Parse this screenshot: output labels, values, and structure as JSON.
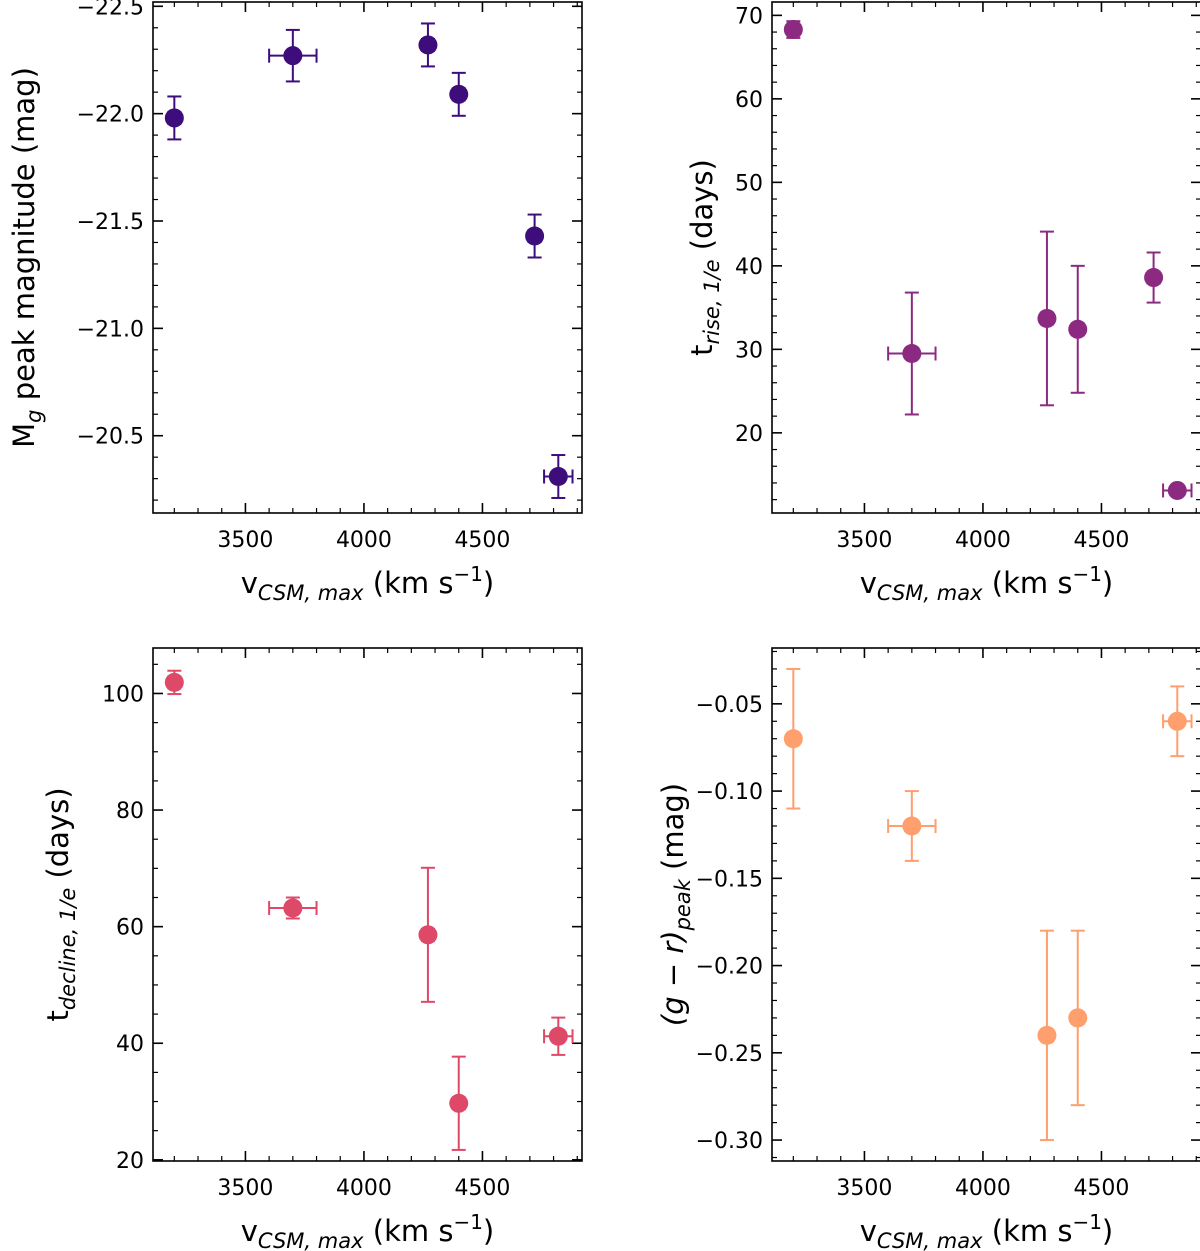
{
  "chart_data": [
    {
      "type": "scatter",
      "id": "mg",
      "color": "#3d0d7c",
      "title": "",
      "xlabel": {
        "main": "v",
        "sub": "CSM, max",
        "unit": " (km s",
        "sup": "−1",
        "close": ")"
      },
      "ylabel": {
        "main": "M",
        "sub": "g",
        "rest": " peak magnitude (mag)"
      },
      "xlim": [
        3110,
        4920
      ],
      "ylim": [
        -22.52,
        -20.14
      ],
      "y_inverted": true,
      "xticks": [
        3500,
        4000,
        4500
      ],
      "xtick_labels": [
        "3500",
        "4000",
        "4500"
      ],
      "yticks": [
        -20.5,
        -21.0,
        -21.5,
        -22.0,
        -22.5
      ],
      "ytick_labels": [
        "−20.5",
        "−21.0",
        "−21.5",
        "−22.0",
        "−22.5"
      ],
      "x_minor_step": 100,
      "y_minor_step": 0.1,
      "points": [
        {
          "x": 3200,
          "y": -21.98,
          "xerr": 25,
          "yerr": 0.1
        },
        {
          "x": 3700,
          "y": -22.27,
          "xerr": 100,
          "yerr": 0.12
        },
        {
          "x": 4270,
          "y": -22.32,
          "xerr": 25,
          "yerr": 0.1
        },
        {
          "x": 4400,
          "y": -22.09,
          "xerr": 25,
          "yerr": 0.1
        },
        {
          "x": 4720,
          "y": -21.43,
          "xerr": 25,
          "yerr": 0.1
        },
        {
          "x": 4820,
          "y": -20.31,
          "xerr": 60,
          "yerr": 0.1
        }
      ]
    },
    {
      "type": "scatter",
      "id": "trise",
      "color": "#8c2981",
      "title": "",
      "xlabel": {
        "main": "v",
        "sub": "CSM, max",
        "unit": " (km s",
        "sup": "−1",
        "close": ")"
      },
      "ylabel": {
        "main": "t",
        "sub": "rise, 1/e",
        "rest": " (days)"
      },
      "xlim": [
        3110,
        4920
      ],
      "ylim": [
        10.4,
        71.6
      ],
      "y_inverted": false,
      "xticks": [
        3500,
        4000,
        4500
      ],
      "xtick_labels": [
        "3500",
        "4000",
        "4500"
      ],
      "yticks": [
        20,
        30,
        40,
        50,
        60,
        70
      ],
      "ytick_labels": [
        "20",
        "30",
        "40",
        "50",
        "60",
        "70"
      ],
      "x_minor_step": 100,
      "y_minor_step": 2,
      "points": [
        {
          "x": 3200,
          "y": 68.3,
          "xerr": 25,
          "yerr": 1
        },
        {
          "x": 3700,
          "y": 29.5,
          "xerr": 100,
          "yerr": 7.3
        },
        {
          "x": 4270,
          "y": 33.7,
          "xerr": 25,
          "yerr": 10.4
        },
        {
          "x": 4400,
          "y": 32.4,
          "xerr": 25,
          "yerr": 7.6
        },
        {
          "x": 4720,
          "y": 38.6,
          "xerr": 25,
          "yerr": 3
        },
        {
          "x": 4820,
          "y": 13.1,
          "xerr": 60,
          "yerr": 0.6
        }
      ]
    },
    {
      "type": "scatter",
      "id": "tdecline",
      "color": "#de4968",
      "title": "",
      "xlabel": {
        "main": "v",
        "sub": "CSM, max",
        "unit": " (km s",
        "sup": "−1",
        "close": ")"
      },
      "ylabel": {
        "main": "t",
        "sub": "decline, 1/e",
        "rest": " (days)"
      },
      "xlim": [
        3110,
        4920
      ],
      "ylim": [
        19.8,
        107.8
      ],
      "y_inverted": false,
      "xticks": [
        3500,
        4000,
        4500
      ],
      "xtick_labels": [
        "3500",
        "4000",
        "4500"
      ],
      "yticks": [
        20,
        40,
        60,
        80,
        100
      ],
      "ytick_labels": [
        "20",
        "40",
        "60",
        "80",
        "100"
      ],
      "x_minor_step": 100,
      "y_minor_step": 5,
      "points": [
        {
          "x": 3200,
          "y": 101.9,
          "xerr": 25,
          "yerr": 2
        },
        {
          "x": 3700,
          "y": 63.2,
          "xerr": 100,
          "yerr": 1.8
        },
        {
          "x": 4270,
          "y": 58.6,
          "xerr": 25,
          "yerr": 11.5
        },
        {
          "x": 4400,
          "y": 29.7,
          "xerr": 25,
          "yerr": 8
        },
        {
          "x": 4820,
          "y": 41.2,
          "xerr": 60,
          "yerr": 3.2
        }
      ]
    },
    {
      "type": "scatter",
      "id": "gr",
      "color": "#fe9f6d",
      "title": "",
      "xlabel": {
        "main": "v",
        "sub": "CSM, max",
        "unit": " (km s",
        "sup": "−1",
        "close": ")"
      },
      "ylabel": {
        "main": "(g − r)",
        "sub": "peak",
        "rest": " (mag)"
      },
      "xlim": [
        3110,
        4920
      ],
      "ylim": [
        -0.312,
        -0.018
      ],
      "y_inverted": false,
      "xticks": [
        3500,
        4000,
        4500
      ],
      "xtick_labels": [
        "3500",
        "4000",
        "4500"
      ],
      "yticks": [
        -0.05,
        -0.1,
        -0.15,
        -0.2,
        -0.25,
        -0.3
      ],
      "ytick_labels": [
        "−0.05",
        "−0.10",
        "−0.15",
        "−0.20",
        "−0.25",
        "−0.30"
      ],
      "x_minor_step": 100,
      "y_minor_step": 0.01,
      "points": [
        {
          "x": 3200,
          "y": -0.07,
          "xerr": 25,
          "yerr": 0.04
        },
        {
          "x": 3700,
          "y": -0.12,
          "xerr": 100,
          "yerr": 0.02
        },
        {
          "x": 4270,
          "y": -0.24,
          "xerr": 25,
          "yerr": 0.06
        },
        {
          "x": 4400,
          "y": -0.23,
          "xerr": 25,
          "yerr": 0.05
        },
        {
          "x": 4820,
          "y": -0.06,
          "xerr": 60,
          "yerr": 0.02
        }
      ]
    }
  ]
}
